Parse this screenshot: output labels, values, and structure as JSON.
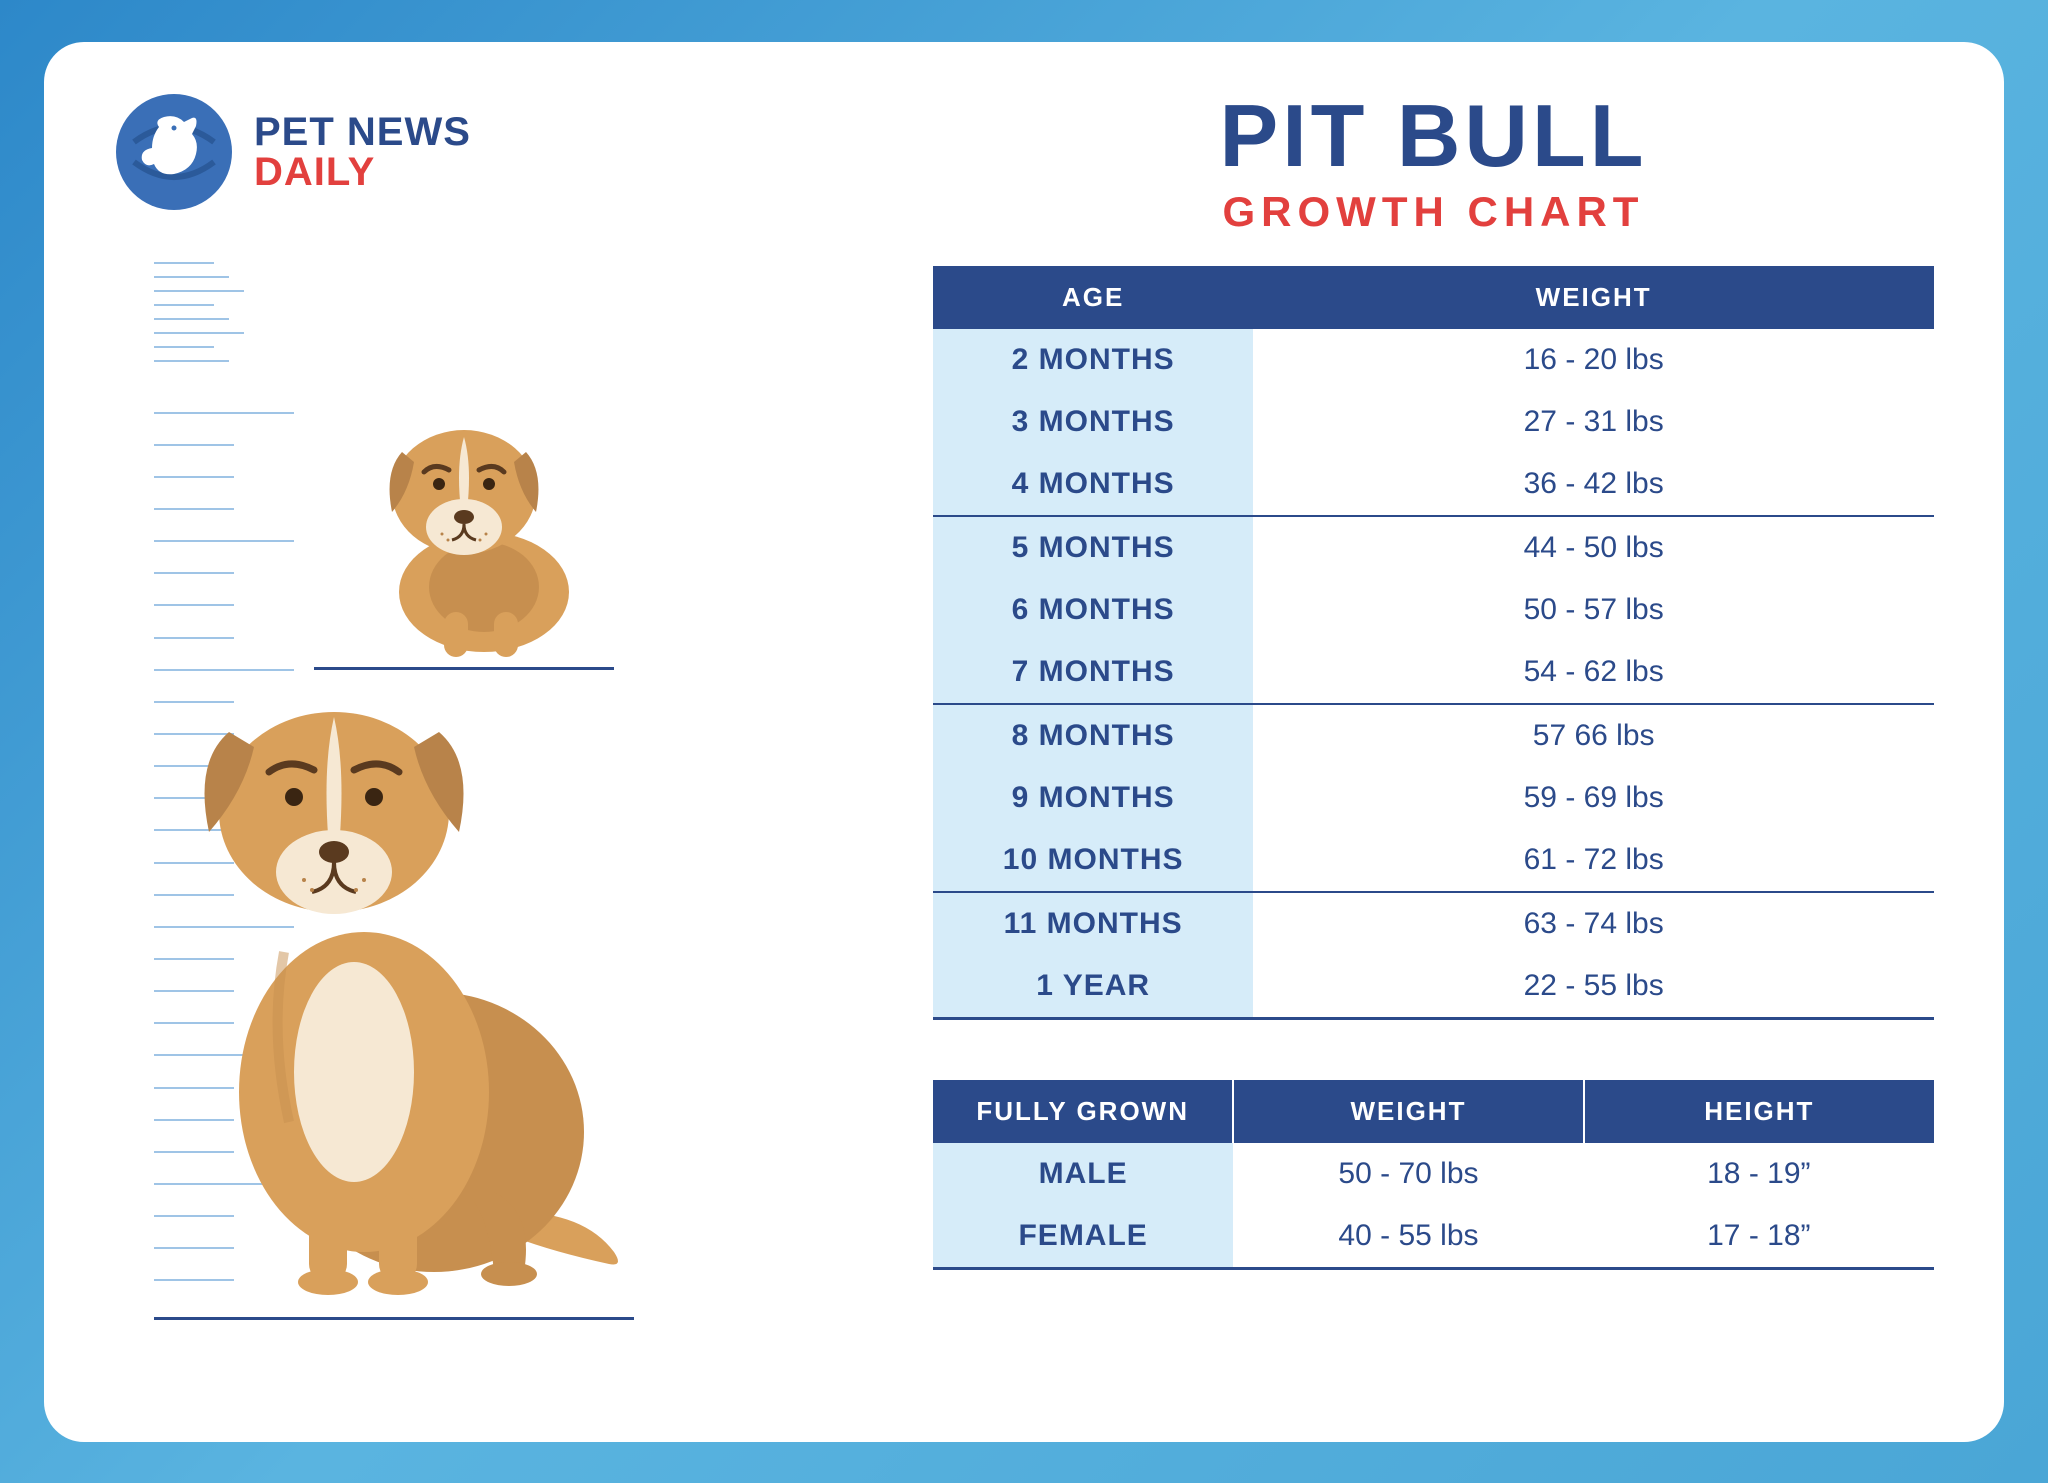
{
  "logo": {
    "line1": "PET NEWS",
    "line2": "DAILY",
    "circle_color": "#3a6fb7",
    "silhouette_color": "#ffffff"
  },
  "title": {
    "main": "PIT BULL",
    "sub": "GROWTH CHART",
    "main_color": "#2b4a8a",
    "sub_color": "#e2403e"
  },
  "colors": {
    "header_bg": "#2b4a8a",
    "header_text": "#ffffff",
    "age_cell_bg": "#d6ecf9",
    "text_color": "#2b4a8a",
    "ruler_line": "#9fc4e6",
    "card_bg": "#ffffff",
    "page_bg_start": "#2d88c9",
    "page_bg_end": "#5ab4e0",
    "dog_body": "#d9a05b",
    "dog_dark": "#b8834a",
    "dog_light": "#f6e8d3"
  },
  "growth_table": {
    "columns": [
      "AGE",
      "WEIGHT"
    ],
    "groups": [
      [
        {
          "age": "2 MONTHS",
          "weight": "16 - 20 lbs"
        },
        {
          "age": "3 MONTHS",
          "weight": "27 - 31 lbs"
        },
        {
          "age": "4 MONTHS",
          "weight": "36 - 42 lbs"
        }
      ],
      [
        {
          "age": "5 MONTHS",
          "weight": "44 - 50 lbs"
        },
        {
          "age": "6 MONTHS",
          "weight": "50 - 57 lbs"
        },
        {
          "age": "7 MONTHS",
          "weight": "54 - 62 lbs"
        }
      ],
      [
        {
          "age": "8 MONTHS",
          "weight": "57 66 lbs"
        },
        {
          "age": "9 MONTHS",
          "weight": "59 - 69 lbs"
        },
        {
          "age": "10 MONTHS",
          "weight": "61 - 72 lbs"
        }
      ],
      [
        {
          "age": "11 MONTHS",
          "weight": "63 - 74 lbs"
        },
        {
          "age": "1 YEAR",
          "weight": "22 - 55 lbs"
        }
      ]
    ]
  },
  "grown_table": {
    "columns": [
      "FULLY GROWN",
      "WEIGHT",
      "HEIGHT"
    ],
    "rows": [
      {
        "label": "MALE",
        "weight": "50 - 70 lbs",
        "height": "18 - 19”"
      },
      {
        "label": "FEMALE",
        "weight": "40 - 55 lbs",
        "height": "17 - 18”"
      }
    ]
  },
  "ruler": {
    "line_color": "#9fc4e6",
    "count_long": 18,
    "count_short": 6
  }
}
